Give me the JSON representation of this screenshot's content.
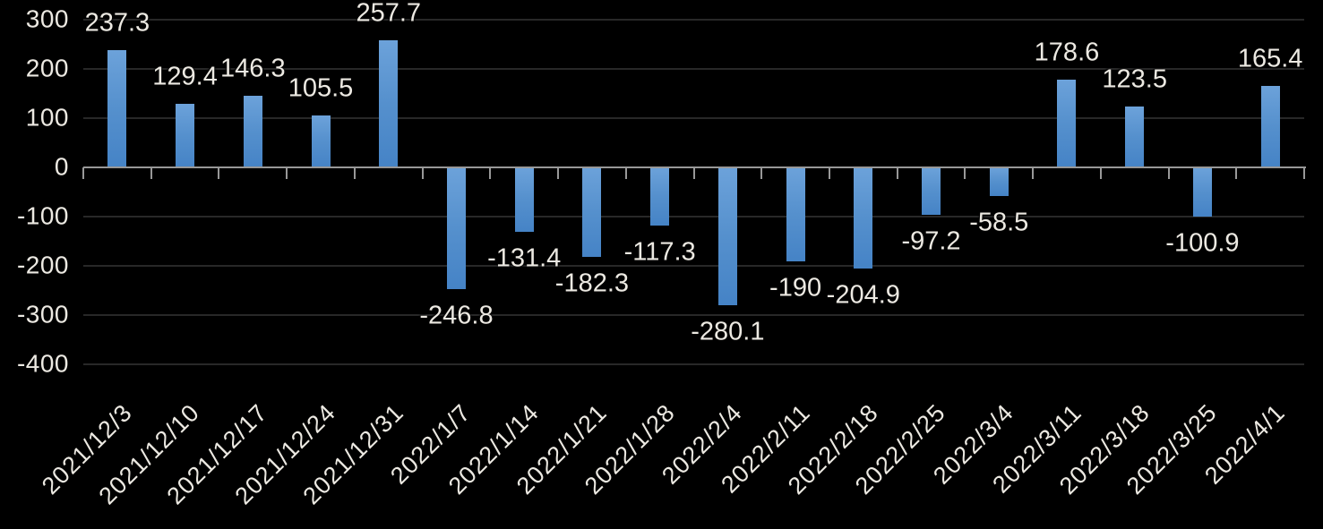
{
  "chart_data": {
    "type": "bar",
    "title": "",
    "categories": [
      "2021/12/3",
      "2021/12/10",
      "2021/12/17",
      "2021/12/24",
      "2021/12/31",
      "2022/1/7",
      "2022/1/14",
      "2022/1/21",
      "2022/1/28",
      "2022/2/4",
      "2022/2/11",
      "2022/2/18",
      "2022/2/25",
      "2022/3/4",
      "2022/3/11",
      "2022/3/18",
      "2022/3/25",
      "2022/4/1"
    ],
    "values": [
      237.3,
      129.4,
      146.3,
      105.5,
      257.7,
      -246.8,
      -131.4,
      -182.3,
      -117.3,
      -280.1,
      -190,
      -204.9,
      -97.2,
      -58.5,
      178.6,
      123.5,
      -100.9,
      165.4
    ],
    "data_labels": [
      "237.3",
      "129.4",
      "146.3",
      "105.5",
      "257.7",
      "-246.8",
      "-131.4",
      "-182.3",
      "-117.3",
      "-280.1",
      "-190",
      "-204.9",
      "-97.2",
      "-58.5",
      "178.6",
      "123.5",
      "-100.9",
      "165.4"
    ],
    "y_ticks": [
      300,
      200,
      100,
      0,
      -100,
      -200,
      -300,
      -400
    ],
    "y_tick_labels": [
      "300",
      "200",
      "100",
      "0",
      "-100",
      "-200",
      "-300",
      "-400"
    ],
    "ylim": [
      -400,
      300
    ],
    "grid": true,
    "legend": "none",
    "x_tick_rotation_deg": 45,
    "data_label_position": "outside-end",
    "colors": {
      "background": "#000000",
      "bar_gradient_top": "#6ca2da",
      "bar_gradient_mid": "#5590cd",
      "bar_gradient_bottom": "#4583c6",
      "gridline": "#282828",
      "axis_line": "#989898",
      "label_text": "#ece9e2"
    }
  }
}
